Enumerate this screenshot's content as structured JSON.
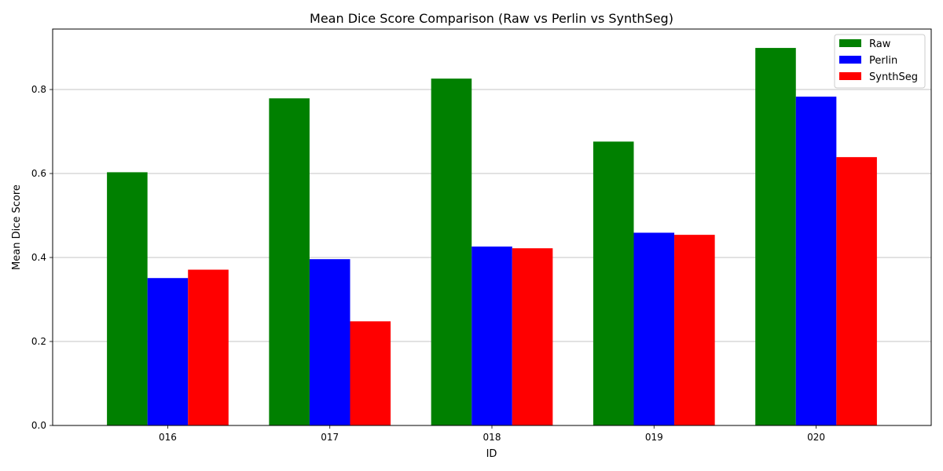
{
  "chart_data": {
    "type": "bar",
    "title": "Mean Dice Score Comparison (Raw vs Perlin vs SynthSeg)",
    "xlabel": "ID",
    "ylabel": "Mean Dice Score",
    "categories": [
      "016",
      "017",
      "018",
      "019",
      "020"
    ],
    "series": [
      {
        "name": "Raw",
        "color": "#008000",
        "values": [
          0.603,
          0.779,
          0.826,
          0.676,
          0.899
        ]
      },
      {
        "name": "Perlin",
        "color": "#0000ff",
        "values": [
          0.351,
          0.396,
          0.426,
          0.459,
          0.783
        ]
      },
      {
        "name": "SynthSeg",
        "color": "#ff0000",
        "values": [
          0.371,
          0.248,
          0.422,
          0.454,
          0.639
        ]
      }
    ],
    "ylim": [
      0,
      0.944
    ],
    "yticks": [
      0.0,
      0.2,
      0.4,
      0.6,
      0.8
    ],
    "ytick_labels": [
      "0.0",
      "0.2",
      "0.4",
      "0.6",
      "0.8"
    ],
    "grid": "y-major",
    "legend_position": "top-right"
  }
}
